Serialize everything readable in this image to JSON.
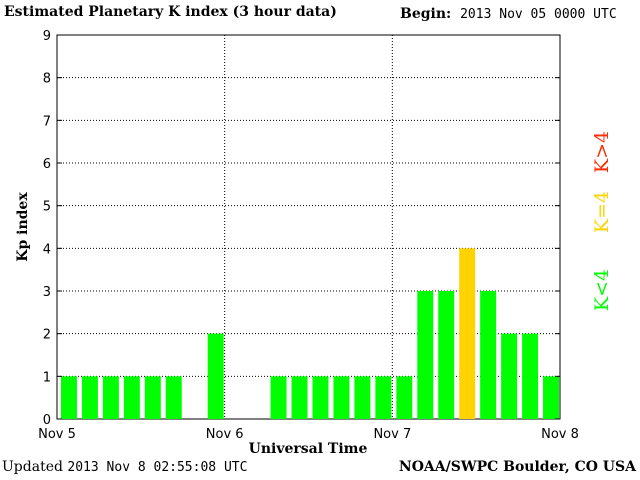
{
  "header": {
    "title": "Estimated Planetary K index (3 hour data)",
    "begin_label": "Begin:",
    "begin_value": "2013 Nov 05 0000 UTC"
  },
  "footer": {
    "updated_label": "Updated",
    "updated_value": "2013 Nov  8 02:55:08 UTC",
    "credit": "NOAA/SWPC Boulder, CO USA"
  },
  "legend": [
    {
      "label": "K>4",
      "color": "#ff2a00"
    },
    {
      "label": "K=4",
      "color": "#ffd300"
    },
    {
      "label": "K<4",
      "color": "#00ff00"
    }
  ],
  "chart_data": {
    "type": "bar",
    "title": "Estimated Planetary K index (3 hour data)",
    "xlabel": "Universal Time",
    "ylabel": "Kp index",
    "ylim": [
      0,
      9
    ],
    "yticks": [
      "0",
      "1",
      "2",
      "3",
      "4",
      "5",
      "6",
      "7",
      "8",
      "9"
    ],
    "xticks": [
      "Nov 5",
      "Nov 6",
      "Nov 7",
      "Nov 8"
    ],
    "grid": true,
    "values": [
      1,
      1,
      1,
      1,
      1,
      1,
      null,
      2,
      null,
      null,
      1,
      1,
      1,
      1,
      1,
      1,
      1,
      3,
      3,
      4,
      3,
      2,
      2,
      1
    ],
    "colors": {
      "below4": "#00ff00",
      "equal4": "#ffd300",
      "above4": "#ff2a00"
    }
  }
}
